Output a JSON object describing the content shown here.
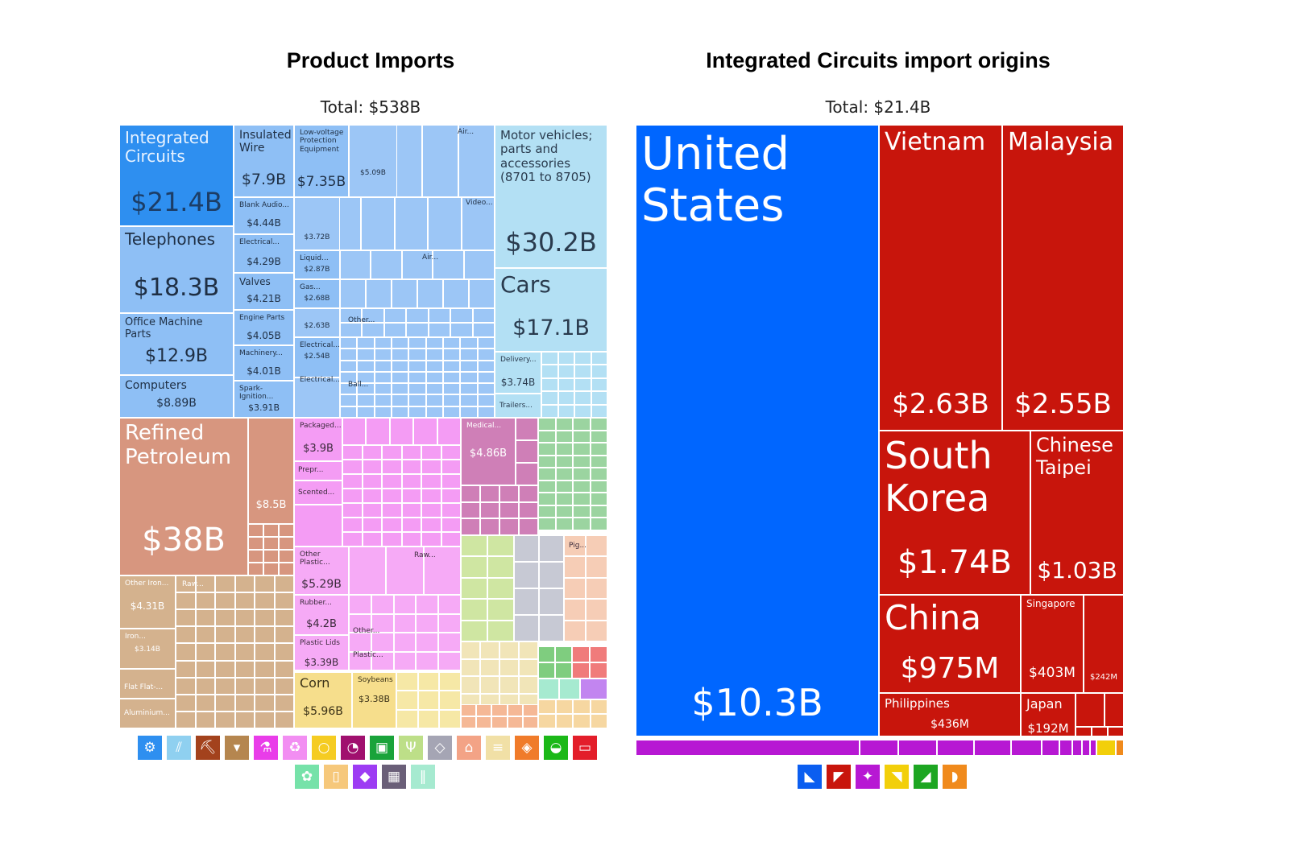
{
  "left": {
    "title": "Product Imports",
    "total": "Total: $538B"
  },
  "right": {
    "title": "Integrated Circuits import origins",
    "total": "Total: $21.4B"
  },
  "chart_data": [
    {
      "type": "treemap",
      "title": "Product Imports",
      "subtitle": "Total: $538B",
      "unit": "USD",
      "items": [
        {
          "label": "Integrated Circuits",
          "value": 21.4,
          "value_label": "$21.4B",
          "color": "#2e8ff0"
        },
        {
          "label": "Telephones",
          "value": 18.3,
          "value_label": "$18.3B",
          "color": "#8ebff5"
        },
        {
          "label": "Office Machine Parts",
          "value": 12.9,
          "value_label": "$12.9B",
          "color": "#8ebff5"
        },
        {
          "label": "Computers",
          "value": 8.89,
          "value_label": "$8.89B",
          "color": "#8ebff5"
        },
        {
          "label": "Insulated Wire",
          "value": 7.9,
          "value_label": "$7.9B",
          "color": "#8ebff5"
        },
        {
          "label": "Low-voltage Protection Equipment",
          "value": 7.35,
          "value_label": "$7.35B",
          "color": "#8ebff5"
        },
        {
          "label": "",
          "value": 5.09,
          "value_label": "$5.09B",
          "color": "#8ebff5"
        },
        {
          "label": "Blank Audio...",
          "value": 4.44,
          "value_label": "$4.44B",
          "color": "#8ebff5"
        },
        {
          "label": "Electrical...",
          "value": 4.29,
          "value_label": "$4.29B",
          "color": "#8ebff5"
        },
        {
          "label": "Valves",
          "value": 4.21,
          "value_label": "$4.21B",
          "color": "#8ebff5"
        },
        {
          "label": "Engine Parts",
          "value": 4.05,
          "value_label": "$4.05B",
          "color": "#8ebff5"
        },
        {
          "label": "Machinery...",
          "value": 4.01,
          "value_label": "$4.01B",
          "color": "#8ebff5"
        },
        {
          "label": "Spark-Ignition...",
          "value": 3.91,
          "value_label": "$3.91B",
          "color": "#8ebff5"
        },
        {
          "label": "",
          "value": 3.72,
          "value_label": "$3.72B",
          "color": "#8ebff5"
        },
        {
          "label": "Liquid...",
          "value": 2.87,
          "value_label": "$2.87B",
          "color": "#8ebff5"
        },
        {
          "label": "Gas...",
          "value": 2.68,
          "value_label": "$2.68B",
          "color": "#8ebff5"
        },
        {
          "label": "",
          "value": 2.63,
          "value_label": "$2.63B",
          "color": "#8ebff5"
        },
        {
          "label": "Electrical...",
          "value": 2.54,
          "value_label": "$2.54B",
          "color": "#8ebff5"
        },
        {
          "label": "Motor vehicles; parts and accessories (8701 to 8705)",
          "value": 30.2,
          "value_label": "$30.2B",
          "color": "#b3e0f4"
        },
        {
          "label": "Cars",
          "value": 17.1,
          "value_label": "$17.1B",
          "color": "#b3e0f4"
        },
        {
          "label": "Delivery...",
          "value": 3.74,
          "value_label": "$3.74B",
          "color": "#b3e0f4"
        },
        {
          "label": "Refined Petroleum",
          "value": 38,
          "value_label": "$38B",
          "color": "#d7967f"
        },
        {
          "label": "",
          "value": 8.5,
          "value_label": "$8.5B",
          "color": "#d7967f"
        },
        {
          "label": "Other Iron...",
          "value": 4.31,
          "value_label": "$4.31B",
          "color": "#d4b28e"
        },
        {
          "label": "Iron...",
          "value": 3.14,
          "value_label": "$3.14B",
          "color": "#d4b28e"
        },
        {
          "label": "Packaged...",
          "value": 3.9,
          "value_label": "$3.9B",
          "color": "#f49cf4"
        },
        {
          "label": "Medical...",
          "value": 4.86,
          "value_label": "$4.86B",
          "color": "#cf7fb7"
        },
        {
          "label": "Other Plastic...",
          "value": 5.29,
          "value_label": "$5.29B",
          "color": "#f6aaf6"
        },
        {
          "label": "Rubber...",
          "value": 4.2,
          "value_label": "$4.2B",
          "color": "#f6aaf6"
        },
        {
          "label": "Plastic Lids",
          "value": 3.39,
          "value_label": "$3.39B",
          "color": "#f6aaf6"
        },
        {
          "label": "Corn",
          "value": 5.96,
          "value_label": "$5.96B",
          "color": "#f6de8c"
        },
        {
          "label": "Soybeans",
          "value": 3.38,
          "value_label": "$3.38B",
          "color": "#f6de8c"
        }
      ],
      "small_labels": [
        "Air...",
        "Video...",
        "Air...",
        "Other...",
        "Ball...",
        "Electrical...",
        "Trailers...",
        "Raw...",
        "Flat Flat-...",
        "Aluminium...",
        "Prepr...",
        "Scented...",
        "Raw...",
        "Other...",
        "Plastic...",
        "Pig..."
      ]
    },
    {
      "type": "treemap",
      "title": "Integrated Circuits import origins",
      "subtitle": "Total: $21.4B",
      "unit": "USD",
      "items": [
        {
          "label": "United States",
          "value": 10.3,
          "value_label": "$10.3B",
          "color": "#0066ff"
        },
        {
          "label": "Vietnam",
          "value": 2.63,
          "value_label": "$2.63B",
          "color": "#c8150c"
        },
        {
          "label": "Malaysia",
          "value": 2.55,
          "value_label": "$2.55B",
          "color": "#c8150c"
        },
        {
          "label": "South Korea",
          "value": 1.74,
          "value_label": "$1.74B",
          "color": "#c8150c"
        },
        {
          "label": "Chinese Taipei",
          "value": 1.03,
          "value_label": "$1.03B",
          "color": "#c8150c"
        },
        {
          "label": "China",
          "value": 0.975,
          "value_label": "$975M",
          "color": "#c8150c"
        },
        {
          "label": "Philippines",
          "value": 0.436,
          "value_label": "$436M",
          "color": "#c8150c"
        },
        {
          "label": "Singapore",
          "value": 0.403,
          "value_label": "$403M",
          "color": "#c8150c"
        },
        {
          "label": "",
          "value": 0.242,
          "value_label": "$242M",
          "color": "#c8150c"
        },
        {
          "label": "Japan",
          "value": 0.192,
          "value_label": "$192M",
          "color": "#c8150c"
        }
      ]
    }
  ],
  "legend_left": {
    "icons": [
      {
        "name": "machines-icon",
        "color": "#2e8ff0",
        "glyph": "⚙"
      },
      {
        "name": "transportation-icon",
        "color": "#8fd0f0",
        "glyph": "⫽"
      },
      {
        "name": "mineral-products-icon",
        "color": "#a3421d",
        "glyph": "⛏"
      },
      {
        "name": "metals-icon",
        "color": "#b5864f",
        "glyph": "▾"
      },
      {
        "name": "chemical-products-icon",
        "color": "#e93de9",
        "glyph": "⚗"
      },
      {
        "name": "plastics-rubbers-icon",
        "color": "#f28ef2",
        "glyph": "♻"
      },
      {
        "name": "vegetable-products-icon",
        "color": "#f5cc22",
        "glyph": "○"
      },
      {
        "name": "instruments-icon",
        "color": "#a0106e",
        "glyph": "◔"
      },
      {
        "name": "textiles-icon",
        "color": "#19a33a",
        "glyph": "▣"
      },
      {
        "name": "foodstuffs-icon",
        "color": "#bddf88",
        "glyph": "Ψ"
      },
      {
        "name": "stone-glass-icon",
        "color": "#a5a5b4",
        "glyph": "◇"
      },
      {
        "name": "animal-products-icon",
        "color": "#f3a386",
        "glyph": "⌂"
      },
      {
        "name": "paper-goods-icon",
        "color": "#f1e0a6",
        "glyph": "≡"
      },
      {
        "name": "wood-products-icon",
        "color": "#f07b2a",
        "glyph": "◈"
      },
      {
        "name": "footwear-headwear-icon",
        "color": "#1bb818",
        "glyph": "◒"
      },
      {
        "name": "miscellaneous-icon",
        "color": "#e31e2a",
        "glyph": "▭"
      }
    ],
    "icons_row2": [
      {
        "name": "animal-hides-icon",
        "color": "#76e2a9",
        "glyph": "✿"
      },
      {
        "name": "animal-vegetable-bi-products-icon",
        "color": "#f6c87b",
        "glyph": "▯"
      },
      {
        "name": "precious-metals-icon",
        "color": "#9d3cf3",
        "glyph": "◆"
      },
      {
        "name": "arts-antiques-icon",
        "color": "#6a5f78",
        "glyph": "▦"
      },
      {
        "name": "weapons-icon",
        "color": "#a6ead0",
        "glyph": "‖"
      }
    ]
  },
  "legend_right": {
    "icons": [
      {
        "name": "north-america-icon",
        "color": "#0b5ef0",
        "glyph": "◣"
      },
      {
        "name": "asia-icon",
        "color": "#c8150c",
        "glyph": "◤"
      },
      {
        "name": "europe-icon",
        "color": "#b718d3",
        "glyph": "✦"
      },
      {
        "name": "africa-icon",
        "color": "#f2cf0a",
        "glyph": "◥"
      },
      {
        "name": "south-america-icon",
        "color": "#1da622",
        "glyph": "◢"
      },
      {
        "name": "oceania-icon",
        "color": "#f08a1c",
        "glyph": "◗"
      }
    ]
  }
}
